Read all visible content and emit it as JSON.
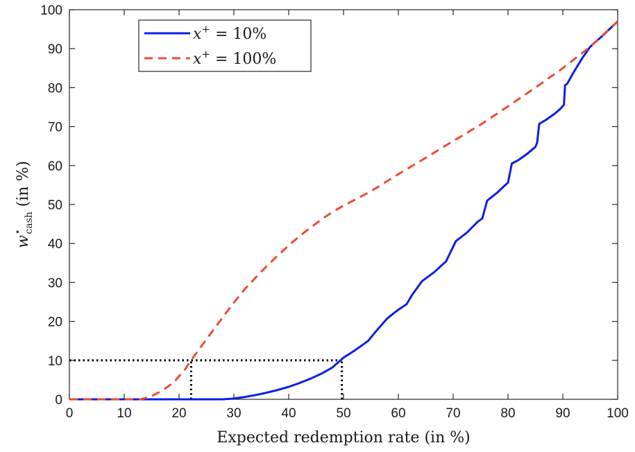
{
  "chart_data": {
    "type": "line",
    "title": "",
    "xlabel": "Expected redemption rate (in %)",
    "ylabel": "w*cash (in %)",
    "ylabel_parts": {
      "symbol": "w",
      "superscript": "⋆",
      "subscript": "cash",
      "unit": "(in %)"
    },
    "xlim": [
      0,
      100
    ],
    "ylim": [
      0,
      100
    ],
    "xticks": [
      0,
      10,
      20,
      30,
      40,
      50,
      60,
      70,
      80,
      90,
      100
    ],
    "yticks": [
      0,
      10,
      20,
      30,
      40,
      50,
      60,
      70,
      80,
      90,
      100
    ],
    "xtick_labels": [
      "0",
      "10",
      "20",
      "30",
      "40",
      "50",
      "60",
      "70",
      "80",
      "90",
      "100"
    ],
    "ytick_labels": [
      "0",
      "10",
      "20",
      "30",
      "40",
      "50",
      "60",
      "70",
      "80",
      "90",
      "100"
    ],
    "grid": false,
    "legend_position": "top-left",
    "series": [
      {
        "name": "x+ = 10%",
        "label_parts": {
          "symbol": "x",
          "superscript": "+",
          "rest": " = 10%"
        },
        "color": "#0a1fe6",
        "style": "solid",
        "points": [
          [
            0,
            0
          ],
          [
            28,
            0
          ],
          [
            30,
            0.2
          ],
          [
            32,
            0.6
          ],
          [
            34,
            1.1
          ],
          [
            36,
            1.7
          ],
          [
            38,
            2.4
          ],
          [
            40,
            3.2
          ],
          [
            42,
            4.2
          ],
          [
            44,
            5.3
          ],
          [
            46,
            6.6
          ],
          [
            48,
            8.2
          ],
          [
            50,
            10.7
          ],
          [
            52,
            12.5
          ],
          [
            54.5,
            15.0
          ],
          [
            56,
            17.6
          ],
          [
            58,
            20.8
          ],
          [
            60,
            23.0
          ],
          [
            61.5,
            24.4
          ],
          [
            62.5,
            26.8
          ],
          [
            64.3,
            30.3
          ],
          [
            66.5,
            32.6
          ],
          [
            68.7,
            35.4
          ],
          [
            70.5,
            40.6
          ],
          [
            72.5,
            42.8
          ],
          [
            74.5,
            45.6
          ],
          [
            75.3,
            46.4
          ],
          [
            76.2,
            51.0
          ],
          [
            78,
            53.0
          ],
          [
            79.5,
            55.0
          ],
          [
            80,
            55.6
          ],
          [
            80.7,
            60.5
          ],
          [
            82,
            61.5
          ],
          [
            83.5,
            63.0
          ],
          [
            85,
            64.8
          ],
          [
            85.3,
            65.8
          ],
          [
            85.7,
            70.7
          ],
          [
            87,
            71.8
          ],
          [
            88.5,
            73.3
          ],
          [
            89.5,
            74.5
          ],
          [
            90.2,
            75.6
          ],
          [
            90.4,
            80.6
          ],
          [
            90.8,
            81.0
          ],
          [
            92,
            84.0
          ],
          [
            93.5,
            87.5
          ],
          [
            95,
            90.5
          ],
          [
            97,
            93.0
          ],
          [
            100,
            97.0
          ]
        ]
      },
      {
        "name": "x+ = 100%",
        "label_parts": {
          "symbol": "x",
          "superscript": "+",
          "rest": " = 100%"
        },
        "color": "#f04a32",
        "style": "dashed",
        "points": [
          [
            0,
            0
          ],
          [
            13,
            0
          ],
          [
            15,
            0.8
          ],
          [
            17,
            2.3
          ],
          [
            19,
            4.3
          ],
          [
            21,
            7.5
          ],
          [
            22.2,
            10.0
          ],
          [
            24,
            13.5
          ],
          [
            26,
            17.3
          ],
          [
            28,
            21.1
          ],
          [
            30,
            24.8
          ],
          [
            32,
            28.3
          ],
          [
            34,
            31.3
          ],
          [
            36,
            34.2
          ],
          [
            38,
            36.9
          ],
          [
            40,
            39.5
          ],
          [
            42,
            41.9
          ],
          [
            44,
            44.1
          ],
          [
            46,
            46.2
          ],
          [
            48,
            48.1
          ],
          [
            50,
            49.7
          ],
          [
            55,
            53.4
          ],
          [
            60,
            57.8
          ],
          [
            65,
            62.0
          ],
          [
            70,
            66.3
          ],
          [
            75,
            70.5
          ],
          [
            80,
            75.2
          ],
          [
            85,
            80.0
          ],
          [
            90,
            85.0
          ],
          [
            95,
            90.5
          ],
          [
            100,
            97.0
          ]
        ]
      }
    ],
    "reference_lines": [
      {
        "from": [
          0,
          10
        ],
        "to": [
          49.7,
          10
        ],
        "color": "#000000",
        "style": "dotted"
      },
      {
        "from": [
          22.2,
          0
        ],
        "to": [
          22.2,
          10
        ],
        "color": "#000000",
        "style": "dotted"
      },
      {
        "from": [
          49.7,
          0
        ],
        "to": [
          49.7,
          10
        ],
        "color": "#000000",
        "style": "dotted"
      }
    ]
  }
}
